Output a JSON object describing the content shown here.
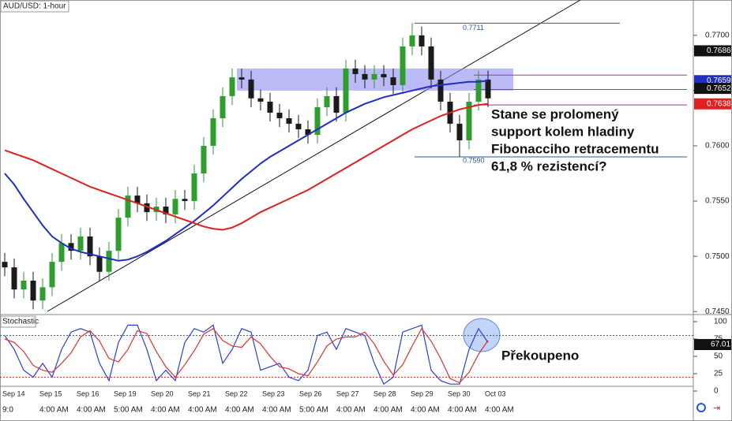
{
  "chart_data": [
    {
      "type": "candlestick",
      "title": "AUD/USD: 1-hour",
      "open": [
        0.7495,
        0.749,
        0.747,
        0.7478,
        0.746,
        0.7472,
        0.7495,
        0.7512,
        0.7505,
        0.7518,
        0.75,
        0.7486,
        0.7505,
        0.7535,
        0.7555,
        0.7548,
        0.754,
        0.7545,
        0.7538,
        0.7552,
        0.755,
        0.7575,
        0.76,
        0.7625,
        0.7645,
        0.7662,
        0.766,
        0.7643,
        0.764,
        0.763,
        0.7625,
        0.762,
        0.7615,
        0.761,
        0.7635,
        0.7645,
        0.763,
        0.767,
        0.7665,
        0.766,
        0.7665,
        0.7662,
        0.7655,
        0.769,
        0.77,
        0.769,
        0.766,
        0.764,
        0.762,
        0.7605,
        0.764,
        0.766
      ],
      "high": [
        0.7503,
        0.7498,
        0.7486,
        0.7486,
        0.748,
        0.7503,
        0.752,
        0.752,
        0.7526,
        0.7526,
        0.7508,
        0.7513,
        0.7543,
        0.7563,
        0.7563,
        0.7556,
        0.7553,
        0.7553,
        0.756,
        0.756,
        0.7583,
        0.7608,
        0.7633,
        0.7653,
        0.767,
        0.767,
        0.7668,
        0.7651,
        0.7648,
        0.7638,
        0.7633,
        0.7628,
        0.7623,
        0.7643,
        0.7653,
        0.7653,
        0.7678,
        0.7678,
        0.7673,
        0.7673,
        0.7673,
        0.767,
        0.7698,
        0.7711,
        0.7708,
        0.7698,
        0.7668,
        0.7648,
        0.7628,
        0.7648,
        0.7668,
        0.7668
      ],
      "low": [
        0.7482,
        0.7462,
        0.7462,
        0.7452,
        0.7452,
        0.7464,
        0.7487,
        0.7497,
        0.7497,
        0.7492,
        0.7478,
        0.7478,
        0.7497,
        0.7527,
        0.754,
        0.7532,
        0.7532,
        0.753,
        0.753,
        0.7542,
        0.7542,
        0.7567,
        0.7592,
        0.7617,
        0.7637,
        0.7652,
        0.7635,
        0.7632,
        0.7622,
        0.7617,
        0.7612,
        0.7607,
        0.7602,
        0.7602,
        0.7627,
        0.7622,
        0.7622,
        0.7657,
        0.7652,
        0.7652,
        0.7654,
        0.7647,
        0.7647,
        0.7682,
        0.7682,
        0.7652,
        0.7632,
        0.7612,
        0.759,
        0.7597,
        0.7632,
        0.7635
      ],
      "close": [
        0.749,
        0.747,
        0.7478,
        0.746,
        0.7472,
        0.7495,
        0.7512,
        0.7505,
        0.7518,
        0.75,
        0.7486,
        0.7505,
        0.7535,
        0.7555,
        0.7548,
        0.754,
        0.7545,
        0.7538,
        0.7552,
        0.755,
        0.7575,
        0.76,
        0.7625,
        0.7645,
        0.7662,
        0.766,
        0.7643,
        0.764,
        0.763,
        0.7625,
        0.762,
        0.7615,
        0.761,
        0.7635,
        0.7645,
        0.763,
        0.767,
        0.7665,
        0.766,
        0.7665,
        0.7662,
        0.7655,
        0.769,
        0.77,
        0.769,
        0.766,
        0.764,
        0.762,
        0.7605,
        0.764,
        0.766,
        0.7643
      ],
      "up_color": "#2f9e2f",
      "down_color": "#1a1a1a",
      "series": [
        {
          "color": "#1f2fc4",
          "values": [
            0.7575,
            0.7565,
            0.7552,
            0.754,
            0.7528,
            0.7518,
            0.7512,
            0.7507,
            0.7504,
            0.7502,
            0.75,
            0.7498,
            0.7496,
            0.7497,
            0.75,
            0.7504,
            0.7509,
            0.7514,
            0.752,
            0.7526,
            0.7532,
            0.7539,
            0.7546,
            0.7554,
            0.7562,
            0.757,
            0.7577,
            0.7584,
            0.759,
            0.7595,
            0.76,
            0.7605,
            0.761,
            0.7615,
            0.762,
            0.7625,
            0.763,
            0.7634,
            0.7638,
            0.7641,
            0.7644,
            0.7646,
            0.7648,
            0.765,
            0.7652,
            0.7654,
            0.7655,
            0.7656,
            0.7657,
            0.7658,
            0.7658,
            0.7659
          ]
        },
        {
          "color": "#e02020",
          "values": [
            0.7596,
            0.7593,
            0.759,
            0.7587,
            0.7583,
            0.7579,
            0.7575,
            0.7571,
            0.7567,
            0.7563,
            0.756,
            0.7557,
            0.7554,
            0.7551,
            0.7548,
            0.7545,
            0.7542,
            0.7539,
            0.7536,
            0.7533,
            0.753,
            0.7527,
            0.7525,
            0.7524,
            0.7526,
            0.753,
            0.7535,
            0.754,
            0.7544,
            0.7548,
            0.7552,
            0.7556,
            0.756,
            0.7565,
            0.757,
            0.7575,
            0.758,
            0.7585,
            0.759,
            0.7595,
            0.76,
            0.7605,
            0.761,
            0.7615,
            0.7619,
            0.7623,
            0.7627,
            0.763,
            0.7633,
            0.7635,
            0.7637,
            0.7638
          ]
        }
      ],
      "ylim": [
        0.7448,
        0.7732
      ],
      "yticks": [
        {
          "value": 0.745,
          "label": "0.7450"
        },
        {
          "value": 0.75,
          "label": "0.7500"
        },
        {
          "value": 0.755,
          "label": "0.7550"
        },
        {
          "value": 0.76,
          "label": "0.7600"
        },
        {
          "value": 0.765,
          "label": "0.7650"
        },
        {
          "value": 0.77,
          "label": "0.7700"
        }
      ],
      "price_markers": [
        {
          "value": 0.7686,
          "label": "0.7686",
          "color": "#111111"
        },
        {
          "value": 0.7659,
          "label": "0.7659",
          "color": "#1f2fc4"
        },
        {
          "value": 0.7652,
          "label": "0.7652",
          "color": "#111111"
        },
        {
          "value": 0.7638,
          "label": "0.7638",
          "color": "#e02020"
        }
      ],
      "zone": [
        0.765,
        0.767
      ],
      "zone_color": "#8a8cf0",
      "fib_levels": [
        {
          "value": 0.7711,
          "label": "0.7711"
        },
        0.7664,
        0.7651,
        0.7637,
        {
          "value": 0.759,
          "label": "0.7590"
        }
      ],
      "fib_color": "#2a5b9a",
      "fib_inner_color": "#a03aa0",
      "annotation": [
        "Stane se prolomený",
        "support kolem hladiny",
        "Fibonacciho retracementu",
        "61,8 % rezistencí?"
      ]
    },
    {
      "type": "line",
      "title": "Stochastic",
      "series": [
        {
          "color": "#2a3fd8",
          "values": [
            80,
            60,
            30,
            20,
            40,
            20,
            60,
            85,
            90,
            85,
            40,
            15,
            70,
            95,
            95,
            60,
            15,
            30,
            15,
            70,
            90,
            85,
            95,
            40,
            60,
            90,
            85,
            30,
            35,
            40,
            20,
            15,
            30,
            80,
            85,
            60,
            90,
            85,
            80,
            40,
            10,
            20,
            85,
            90,
            95,
            30,
            15,
            10,
            10,
            60,
            90,
            70
          ]
        },
        {
          "color": "#e03030",
          "values": [
            75,
            70,
            57,
            37,
            30,
            27,
            40,
            55,
            78,
            87,
            72,
            47,
            42,
            60,
            87,
            83,
            57,
            35,
            20,
            38,
            58,
            82,
            90,
            73,
            65,
            63,
            78,
            68,
            50,
            35,
            32,
            25,
            22,
            42,
            65,
            75,
            78,
            78,
            85,
            68,
            43,
            23,
            38,
            65,
            90,
            72,
            47,
            18,
            12,
            27,
            53,
            73
          ]
        }
      ],
      "ylim": [
        0,
        100
      ],
      "yticks": [
        0,
        25,
        50,
        75,
        100
      ],
      "levels": [
        {
          "value": 80,
          "color": "#3344cc"
        },
        {
          "value": 20,
          "color": "#cc2222"
        }
      ],
      "marker": {
        "value": 67.01,
        "label": "67.01",
        "color": "#111111"
      },
      "annotation": "Překoupeno"
    }
  ],
  "time_axis": {
    "dates": [
      "Sep 14",
      "Sep 15",
      "Sep 16",
      "Sep 19",
      "Sep 20",
      "Sep 21",
      "Sep 22",
      "Sep 23",
      "Sep 26",
      "Sep 27",
      "Sep 28",
      "Sep 29",
      "Sep 30",
      "Oct 03"
    ],
    "times": [
      "9:0",
      "4:00 AM",
      "4:00 AM",
      "5:00 AM",
      "4:00 AM",
      "4:00 AM",
      "4:00 AM",
      "4:00 AM",
      "5:00 AM",
      "4:00 AM",
      "4:00 AM",
      "4:00 AM",
      "4:00 AM",
      "4:00 AM"
    ]
  }
}
